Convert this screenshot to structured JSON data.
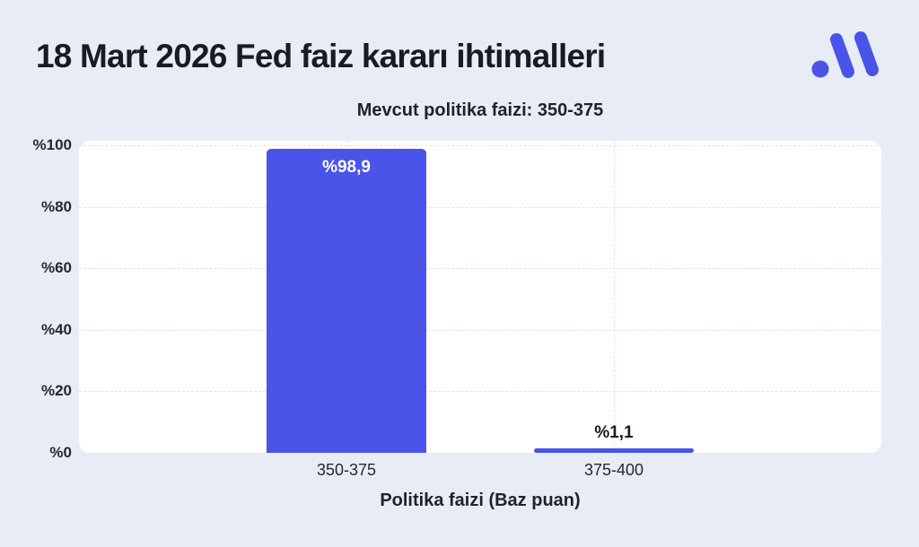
{
  "page": {
    "background_color": "#e8ecf4",
    "panel_color": "#ffffff",
    "brand_color": "#4a54e8",
    "grid_color": "#dce3f2",
    "text_color": "#171b24"
  },
  "header": {
    "title": "18 Mart 2026 Fed faiz kararı ihtimalleri",
    "logo_icon": "midas-logo"
  },
  "chart_data": {
    "type": "bar",
    "title": "18 Mart 2026 Fed faiz kararı ihtimalleri",
    "subtitle": "Mevcut politika faizi: 350-375",
    "categories": [
      "350-375",
      "375-400"
    ],
    "values": [
      98.9,
      1.1
    ],
    "bar_labels": [
      "%98,9",
      "%1,1"
    ],
    "bar_color": "#4a54e8",
    "bar_label_inside_color": "#ffffff",
    "bar_label_outside_color": "#171b24",
    "xlabel": "Politika faizi (Baz puan)",
    "ylabel": "",
    "ylim": [
      0,
      100
    ],
    "yticks": [
      {
        "value": 100,
        "label": "%100"
      },
      {
        "value": 80,
        "label": "%80"
      },
      {
        "value": 60,
        "label": "%60"
      },
      {
        "value": 40,
        "label": "%40"
      },
      {
        "value": 20,
        "label": "%20"
      },
      {
        "value": 0,
        "label": "%0"
      }
    ],
    "grid": {
      "horizontal": "dashed",
      "vertical_at_band_centers": "dashed"
    },
    "legend_position": "none"
  }
}
